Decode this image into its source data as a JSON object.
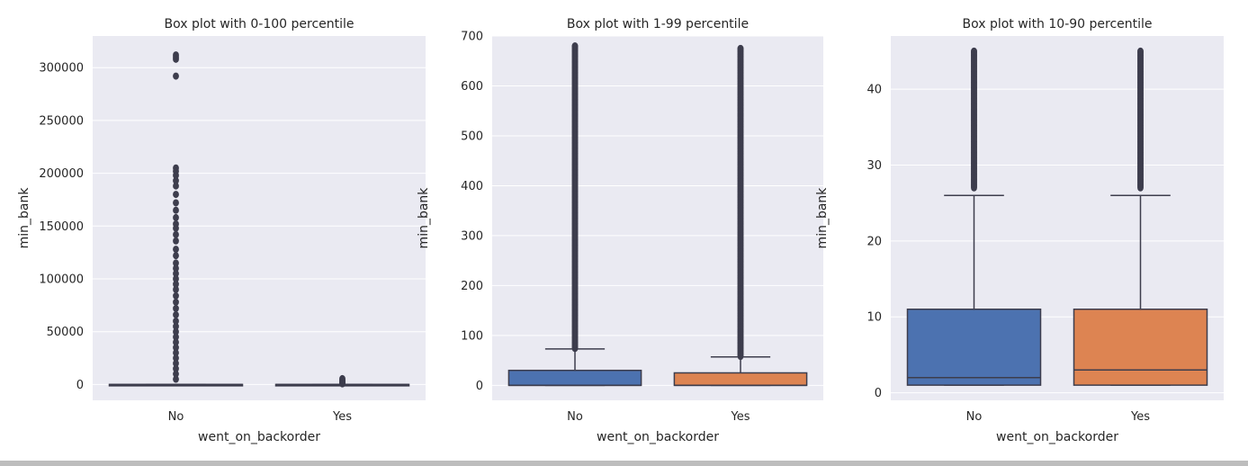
{
  "chart_data": [
    {
      "type": "box",
      "title": "Box plot with 0-100 percentile",
      "xlabel": "went_on_backorder",
      "ylabel": "min_bank",
      "ylim": [
        -15000,
        330000
      ],
      "yticks": [
        0,
        50000,
        100000,
        150000,
        200000,
        250000,
        300000
      ],
      "categories": [
        "No",
        "Yes"
      ],
      "colors": [
        "#4c72b0",
        "#dd8452"
      ],
      "boxes": [
        {
          "q1": 0,
          "median": 0,
          "q3": 30,
          "whisker_low": 0,
          "whisker_high": 75,
          "outliers": [
            312000,
            310000,
            308000,
            292000,
            205000,
            202000,
            198000,
            193000,
            188000,
            180000,
            172000,
            165000,
            158000,
            152000,
            148000,
            142000,
            136000,
            128000,
            122000,
            115000,
            110000,
            105000,
            100000,
            95000,
            90000,
            84000,
            78000,
            72000,
            66000,
            60000,
            55000,
            50000,
            45000,
            40000,
            35000,
            30000,
            25000,
            20000,
            15000,
            10000,
            5000
          ]
        },
        {
          "q1": 0,
          "median": 0,
          "q3": 25,
          "whisker_low": 0,
          "whisker_high": 60,
          "outliers": [
            5500,
            4500,
            3500,
            2500,
            1800,
            1200,
            600
          ]
        }
      ]
    },
    {
      "type": "box",
      "title": "Box plot with 1-99 percentile",
      "xlabel": "went_on_backorder",
      "ylabel": "min_bank",
      "ylim": [
        -30,
        700
      ],
      "yticks": [
        0,
        100,
        200,
        300,
        400,
        500,
        600,
        700
      ],
      "categories": [
        "No",
        "Yes"
      ],
      "colors": [
        "#4c72b0",
        "#dd8452"
      ],
      "boxes": [
        {
          "q1": 0,
          "median": 0,
          "q3": 30,
          "whisker_low": 0,
          "whisker_high": 73,
          "outlier_range": [
            74,
            680
          ]
        },
        {
          "q1": 0,
          "median": 0,
          "q3": 25,
          "whisker_low": 0,
          "whisker_high": 57,
          "outlier_range": [
            58,
            675
          ]
        }
      ]
    },
    {
      "type": "box",
      "title": "Box plot with 10-90 percentile",
      "xlabel": "went_on_backorder",
      "ylabel": "min_bank",
      "ylim": [
        -1,
        47
      ],
      "yticks": [
        0,
        10,
        20,
        30,
        40
      ],
      "categories": [
        "No",
        "Yes"
      ],
      "colors": [
        "#4c72b0",
        "#dd8452"
      ],
      "boxes": [
        {
          "q1": 1,
          "median": 2,
          "q3": 11,
          "whisker_low": 1,
          "whisker_high": 26,
          "outlier_range": [
            27,
            45
          ]
        },
        {
          "q1": 1,
          "median": 3,
          "q3": 11,
          "whisker_low": 1,
          "whisker_high": 26,
          "outlier_range": [
            27,
            45
          ]
        }
      ]
    }
  ]
}
